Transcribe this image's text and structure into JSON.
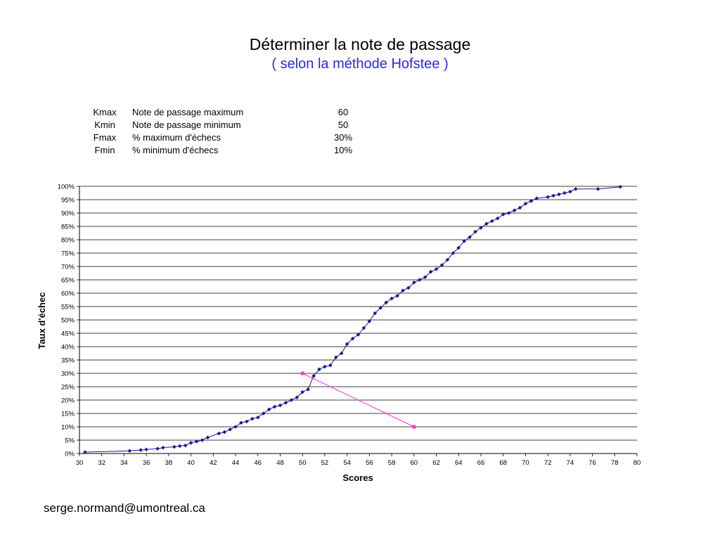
{
  "page": {
    "title": "Déterminer la note de passage",
    "subtitle": "( selon la méthode Hofstee )",
    "footer": "serge.normand@umontreal.ca"
  },
  "params": [
    {
      "code": "Kmax",
      "label": "Note de passage maximum",
      "value": "60"
    },
    {
      "code": "Kmin",
      "label": "Note de passage minimum",
      "value": "50"
    },
    {
      "code": "Fmax",
      "label": "% maximum d'échecs",
      "value": "30%"
    },
    {
      "code": "Fmin",
      "label": "% minimum d'échecs",
      "value": "10%"
    }
  ],
  "chart_data": {
    "type": "scatter",
    "xlabel": "Scores",
    "ylabel": "Taux d'échec",
    "xlim": [
      30,
      80
    ],
    "ylim": [
      0,
      100
    ],
    "x_ticks": [
      30,
      32,
      34,
      36,
      38,
      40,
      42,
      44,
      46,
      48,
      50,
      52,
      54,
      56,
      58,
      60,
      62,
      64,
      66,
      68,
      70,
      72,
      74,
      76,
      78,
      80
    ],
    "y_ticks": [
      "0%",
      "5%",
      "10%",
      "15%",
      "20%",
      "25%",
      "30%",
      "35%",
      "40%",
      "45%",
      "50%",
      "55%",
      "60%",
      "65%",
      "70%",
      "75%",
      "80%",
      "85%",
      "90%",
      "95%",
      "100%"
    ],
    "grid": "horizontal",
    "colors": {
      "series": "#1a1a8c",
      "hofstee": "#ff33cc",
      "grid": "#000000"
    },
    "series": [
      {
        "x": [
          30.5,
          34.5,
          35.5,
          36,
          37,
          37.5,
          38.5,
          39,
          39.5,
          40,
          40.5,
          41,
          41.5,
          42.5,
          43,
          43.5,
          44,
          44.5,
          45,
          45.5,
          46,
          46.5,
          47,
          47.5,
          48,
          48.5,
          49,
          49.5,
          50,
          50.5,
          51,
          51.5,
          52,
          52.5,
          53,
          53.5,
          54,
          54.5,
          55,
          55.5,
          56,
          56.5,
          57,
          57.5,
          58,
          58.5,
          59,
          59.5,
          60,
          60.5,
          61,
          61.5,
          62,
          62.5,
          63,
          63.5,
          64,
          64.5,
          65,
          65.5,
          66,
          66.5,
          67,
          67.5,
          68,
          68.5,
          69,
          69.5,
          70,
          70.5,
          71,
          72,
          72.5,
          73,
          73.5,
          74,
          74.5,
          76.5,
          78.5
        ],
        "y": [
          0.5,
          1,
          1.3,
          1.5,
          1.8,
          2.2,
          2.5,
          2.8,
          3,
          4,
          4.5,
          5,
          6,
          7.5,
          8,
          9,
          10,
          11.5,
          12,
          13,
          13.5,
          15,
          16.5,
          17.5,
          18,
          19,
          20,
          21,
          23,
          24,
          29,
          31.5,
          32.5,
          33,
          36,
          37.5,
          41,
          43,
          44.5,
          47,
          49.5,
          52.5,
          54.5,
          56.5,
          58,
          59,
          61,
          62,
          64,
          65,
          66,
          68,
          69,
          70.5,
          72.5,
          75,
          77,
          79.5,
          81,
          83,
          84.5,
          86,
          87,
          88,
          89.5,
          90,
          91,
          92,
          93.5,
          94.5,
          95.5,
          96,
          96.5,
          97,
          97.5,
          98,
          99,
          99,
          99.8
        ]
      },
      {
        "name": "",
        "x": [
          50,
          60
        ],
        "y": [
          30,
          10
        ]
      }
    ]
  }
}
